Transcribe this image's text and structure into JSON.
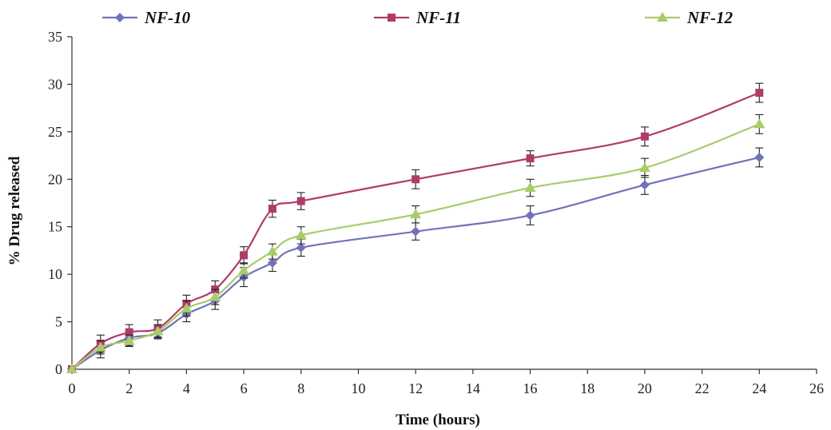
{
  "chart_data": {
    "type": "line",
    "title": "",
    "xlabel": "Time (hours)",
    "ylabel": "% Drug released",
    "xlim": [
      0,
      26
    ],
    "ylim": [
      0,
      35
    ],
    "x_ticks": [
      0,
      2,
      4,
      6,
      8,
      10,
      12,
      14,
      16,
      18,
      20,
      22,
      24,
      26
    ],
    "y_ticks": [
      0,
      5,
      10,
      15,
      20,
      25,
      30,
      35
    ],
    "grid": false,
    "legend_position": "top",
    "x": [
      0,
      1,
      2,
      3,
      4,
      5,
      6,
      7,
      8,
      12,
      16,
      20,
      24
    ],
    "series": [
      {
        "name": "NF-10",
        "color": "#7272b8",
        "marker": "diamond",
        "values": [
          0,
          2.0,
          3.3,
          3.8,
          5.8,
          7.2,
          9.7,
          11.2,
          12.8,
          14.5,
          16.2,
          19.4,
          22.3
        ],
        "errors": [
          0,
          0.8,
          0.8,
          0.6,
          0.8,
          0.9,
          1.0,
          0.9,
          0.9,
          0.9,
          1.0,
          1.0,
          1.0
        ]
      },
      {
        "name": "NF-11",
        "color": "#b03a6a",
        "marker": "square",
        "values": [
          0,
          2.7,
          3.9,
          4.3,
          6.9,
          8.4,
          12.0,
          16.9,
          17.7,
          20.0,
          22.2,
          24.5,
          29.1
        ],
        "errors": [
          0,
          0.9,
          0.8,
          0.9,
          0.9,
          0.9,
          0.9,
          0.9,
          0.9,
          1.0,
          0.8,
          1.0,
          1.0
        ]
      },
      {
        "name": "NF-12",
        "color": "#a8cc6a",
        "marker": "triangle",
        "values": [
          0,
          2.3,
          3.0,
          4.0,
          6.4,
          7.6,
          10.4,
          12.4,
          14.1,
          16.3,
          19.1,
          21.2,
          25.8
        ],
        "errors": [
          0,
          0.7,
          0.6,
          0.7,
          0.8,
          0.8,
          0.8,
          0.8,
          0.9,
          0.9,
          0.9,
          1.0,
          1.0
        ]
      }
    ]
  }
}
